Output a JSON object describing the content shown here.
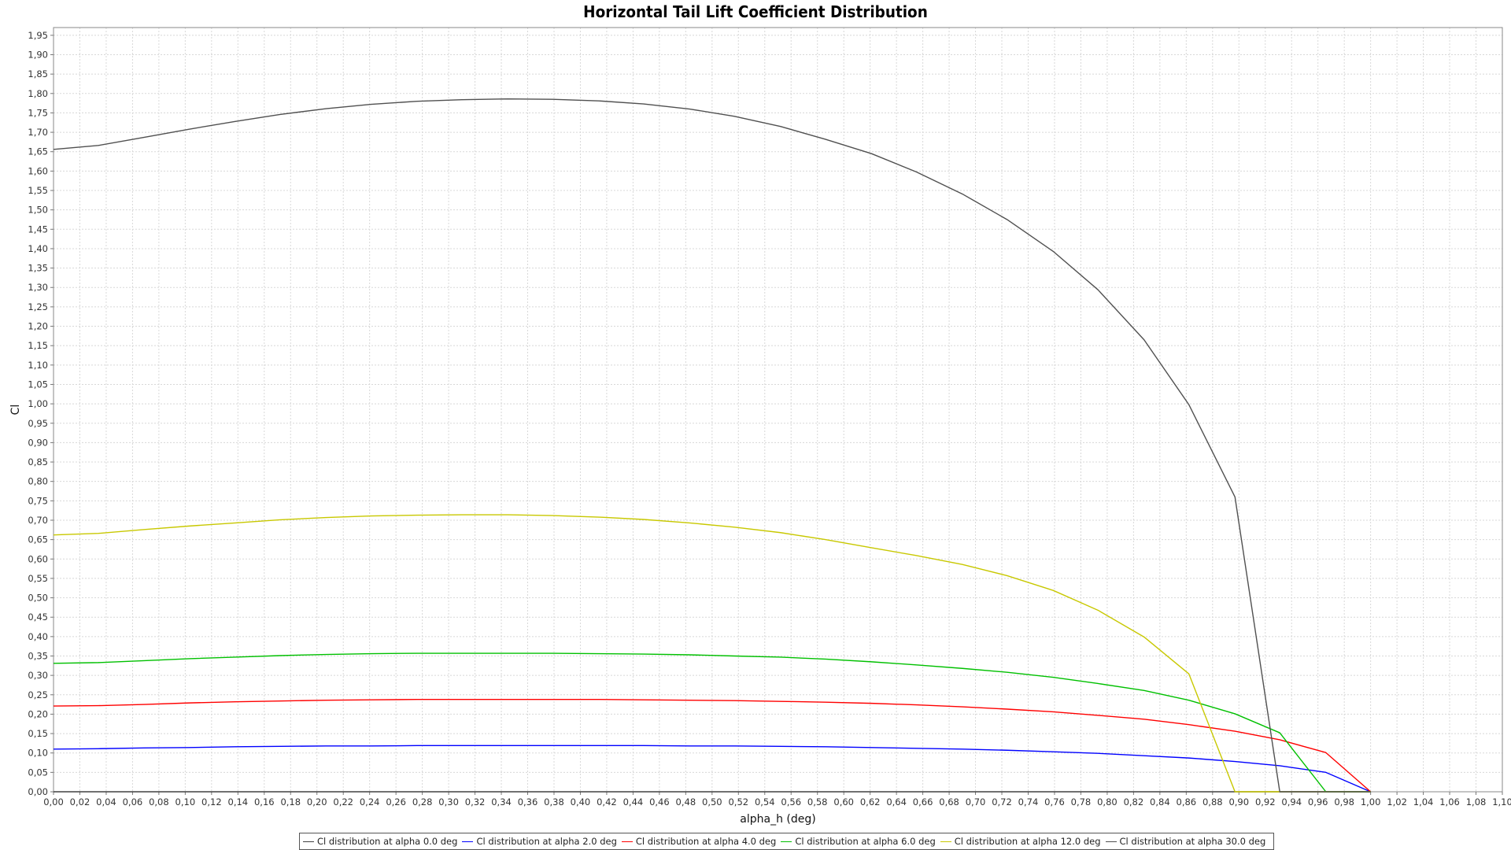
{
  "chart_data": {
    "type": "line",
    "title": "Horizontal Tail Lift Coefficient Distribution",
    "xlabel": "alpha_h (deg)",
    "ylabel": "Cl",
    "xlim": [
      0.0,
      1.1
    ],
    "ylim": [
      0.0,
      1.97
    ],
    "x_ticks": [
      "0,00",
      "0,02",
      "0,04",
      "0,06",
      "0,08",
      "0,10",
      "0,12",
      "0,14",
      "0,16",
      "0,18",
      "0,20",
      "0,22",
      "0,24",
      "0,26",
      "0,28",
      "0,30",
      "0,32",
      "0,34",
      "0,36",
      "0,38",
      "0,40",
      "0,42",
      "0,44",
      "0,46",
      "0,48",
      "0,50",
      "0,52",
      "0,54",
      "0,56",
      "0,58",
      "0,60",
      "0,62",
      "0,64",
      "0,66",
      "0,68",
      "0,70",
      "0,72",
      "0,74",
      "0,76",
      "0,78",
      "0,80",
      "0,82",
      "0,84",
      "0,86",
      "0,88",
      "0,90",
      "0,92",
      "0,94",
      "0,96",
      "0,98",
      "1,00",
      "1,02",
      "1,04",
      "1,06",
      "1,08",
      "1,10"
    ],
    "y_ticks": [
      "0,00",
      "0,05",
      "0,10",
      "0,15",
      "0,20",
      "0,25",
      "0,30",
      "0,35",
      "0,40",
      "0,45",
      "0,50",
      "0,55",
      "0,60",
      "0,65",
      "0,70",
      "0,75",
      "0,80",
      "0,85",
      "0,90",
      "0,95",
      "1,00",
      "1,05",
      "1,10",
      "1,15",
      "1,20",
      "1,25",
      "1,30",
      "1,35",
      "1,40",
      "1,45",
      "1,50",
      "1,55",
      "1,60",
      "1,65",
      "1,70",
      "1,75",
      "1,80",
      "1,85",
      "1,90",
      "1,95"
    ],
    "grid": true,
    "legend_position": "bottom",
    "x": [
      0.0,
      0.034,
      0.069,
      0.103,
      0.138,
      0.172,
      0.207,
      0.241,
      0.276,
      0.31,
      0.345,
      0.379,
      0.414,
      0.448,
      0.483,
      0.517,
      0.552,
      0.586,
      0.621,
      0.655,
      0.69,
      0.724,
      0.759,
      0.793,
      0.828,
      0.862,
      0.897,
      0.931,
      0.966,
      1.0
    ],
    "series": [
      {
        "name": "Cl distribution at alpha 0.0 deg",
        "color": "#404040",
        "values": [
          0,
          0,
          0,
          0,
          0,
          0,
          0,
          0,
          0,
          0,
          0,
          0,
          0,
          0,
          0,
          0,
          0,
          0,
          0,
          0,
          0,
          0,
          0,
          0,
          0,
          0,
          0,
          0,
          0,
          0
        ]
      },
      {
        "name": "Cl distribution at alpha 2.0 deg",
        "color": "#0000ff",
        "values": [
          0.11,
          0.111,
          0.113,
          0.114,
          0.116,
          0.117,
          0.118,
          0.118,
          0.119,
          0.119,
          0.119,
          0.119,
          0.119,
          0.119,
          0.118,
          0.118,
          0.117,
          0.116,
          0.114,
          0.112,
          0.11,
          0.107,
          0.103,
          0.099,
          0.093,
          0.087,
          0.078,
          0.067,
          0.05,
          0.0
        ]
      },
      {
        "name": "Cl distribution at alpha 4.0 deg",
        "color": "#ff0000",
        "values": [
          0.221,
          0.222,
          0.225,
          0.229,
          0.232,
          0.234,
          0.236,
          0.237,
          0.238,
          0.238,
          0.238,
          0.238,
          0.238,
          0.237,
          0.236,
          0.235,
          0.233,
          0.231,
          0.228,
          0.224,
          0.219,
          0.213,
          0.206,
          0.197,
          0.187,
          0.173,
          0.156,
          0.134,
          0.101,
          0.0
        ]
      },
      {
        "name": "Cl distribution at alpha 6.0 deg",
        "color": "#00c000",
        "values": [
          0.331,
          0.333,
          0.338,
          0.343,
          0.347,
          0.351,
          0.354,
          0.356,
          0.357,
          0.357,
          0.357,
          0.357,
          0.356,
          0.355,
          0.353,
          0.35,
          0.347,
          0.342,
          0.335,
          0.327,
          0.318,
          0.308,
          0.295,
          0.279,
          0.261,
          0.236,
          0.201,
          0.152,
          0.0,
          0.0
        ]
      },
      {
        "name": "Cl distribution at alpha 12.0 deg",
        "color": "#c8c800",
        "values": [
          0.662,
          0.666,
          0.676,
          0.685,
          0.693,
          0.701,
          0.707,
          0.711,
          0.713,
          0.714,
          0.714,
          0.712,
          0.708,
          0.702,
          0.693,
          0.682,
          0.668,
          0.65,
          0.629,
          0.609,
          0.586,
          0.557,
          0.519,
          0.468,
          0.399,
          0.304,
          0.0,
          0.0,
          0.0,
          0.0
        ]
      },
      {
        "name": "Cl distribution at alpha 30.0 deg",
        "color": "#505050",
        "values": [
          1.656,
          1.666,
          1.687,
          1.708,
          1.728,
          1.746,
          1.761,
          1.772,
          1.78,
          1.784,
          1.786,
          1.785,
          1.781,
          1.773,
          1.76,
          1.741,
          1.715,
          1.682,
          1.645,
          1.598,
          1.541,
          1.475,
          1.393,
          1.294,
          1.165,
          0.998,
          0.76,
          0.0,
          0.0,
          0.0
        ]
      }
    ]
  }
}
